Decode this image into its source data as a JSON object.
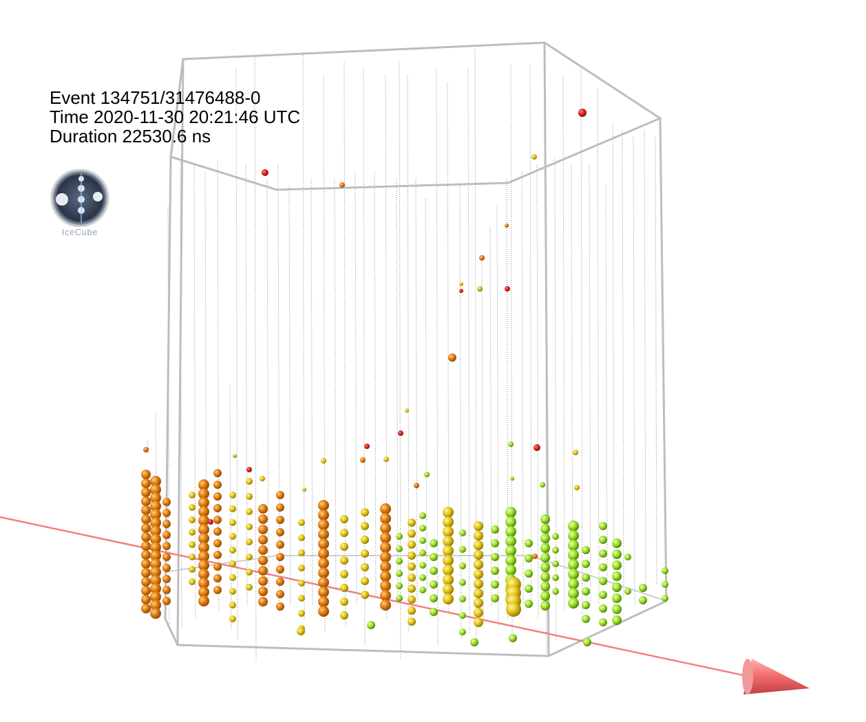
{
  "event": {
    "event_line": "Event 134751/31476488-0",
    "time_line": "Time 2020-11-30 20:21:46 UTC",
    "duration_line": "Duration 22530.6 ns"
  },
  "logo": {
    "text": "IceCube",
    "icon": "icecube-logo-icon"
  },
  "colors": {
    "frame": "#bdbdbd",
    "string": "#8a8a8a",
    "track": "#f08080",
    "track_cone": "#f26b6b",
    "hit_scale_late": "#9be02a",
    "hit_scale_mid": "#e8c818",
    "hit_scale_early": "#e07b10",
    "hit_first": "#d82020"
  }
}
